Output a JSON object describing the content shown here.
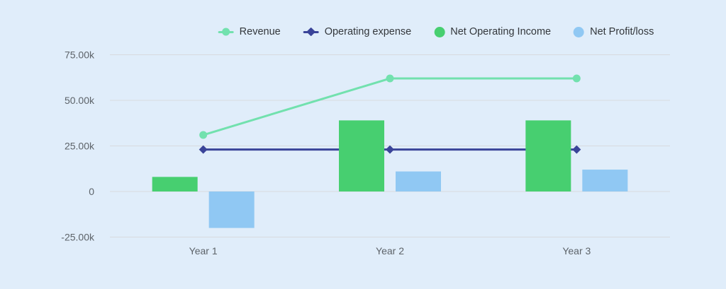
{
  "chart_data": {
    "type": "combo",
    "title": "",
    "categories": [
      "Year 1",
      "Year 2",
      "Year 3"
    ],
    "series": [
      {
        "name": "Revenue",
        "type": "line",
        "marker": "circle",
        "color": "#72e1ae",
        "values": [
          31000,
          62000,
          62000
        ]
      },
      {
        "name": "Operating expense",
        "type": "line",
        "marker": "diamond",
        "color": "#3a4499",
        "values": [
          23000,
          23000,
          23000
        ]
      },
      {
        "name": "Net Operating Income",
        "type": "bar",
        "marker": "circle",
        "color": "#47cf70",
        "values": [
          8000,
          39000,
          39000
        ]
      },
      {
        "name": "Net Profit/loss",
        "type": "bar",
        "marker": "circle",
        "color": "#90c8f3",
        "values": [
          -20000,
          11000,
          12000
        ]
      }
    ],
    "y_ticks": [
      {
        "label": "75.00k",
        "value": 75000
      },
      {
        "label": "50.00k",
        "value": 50000
      },
      {
        "label": "25.00k",
        "value": 25000
      },
      {
        "label": "0",
        "value": 0
      },
      {
        "label": "-25.00k",
        "value": -25000
      }
    ],
    "ylim": [
      -25000,
      75000
    ],
    "grid": true,
    "legend_position": "top",
    "xlabel": "",
    "ylabel": "",
    "background": "#e0edfa",
    "gridline_color": "#d7dade"
  }
}
